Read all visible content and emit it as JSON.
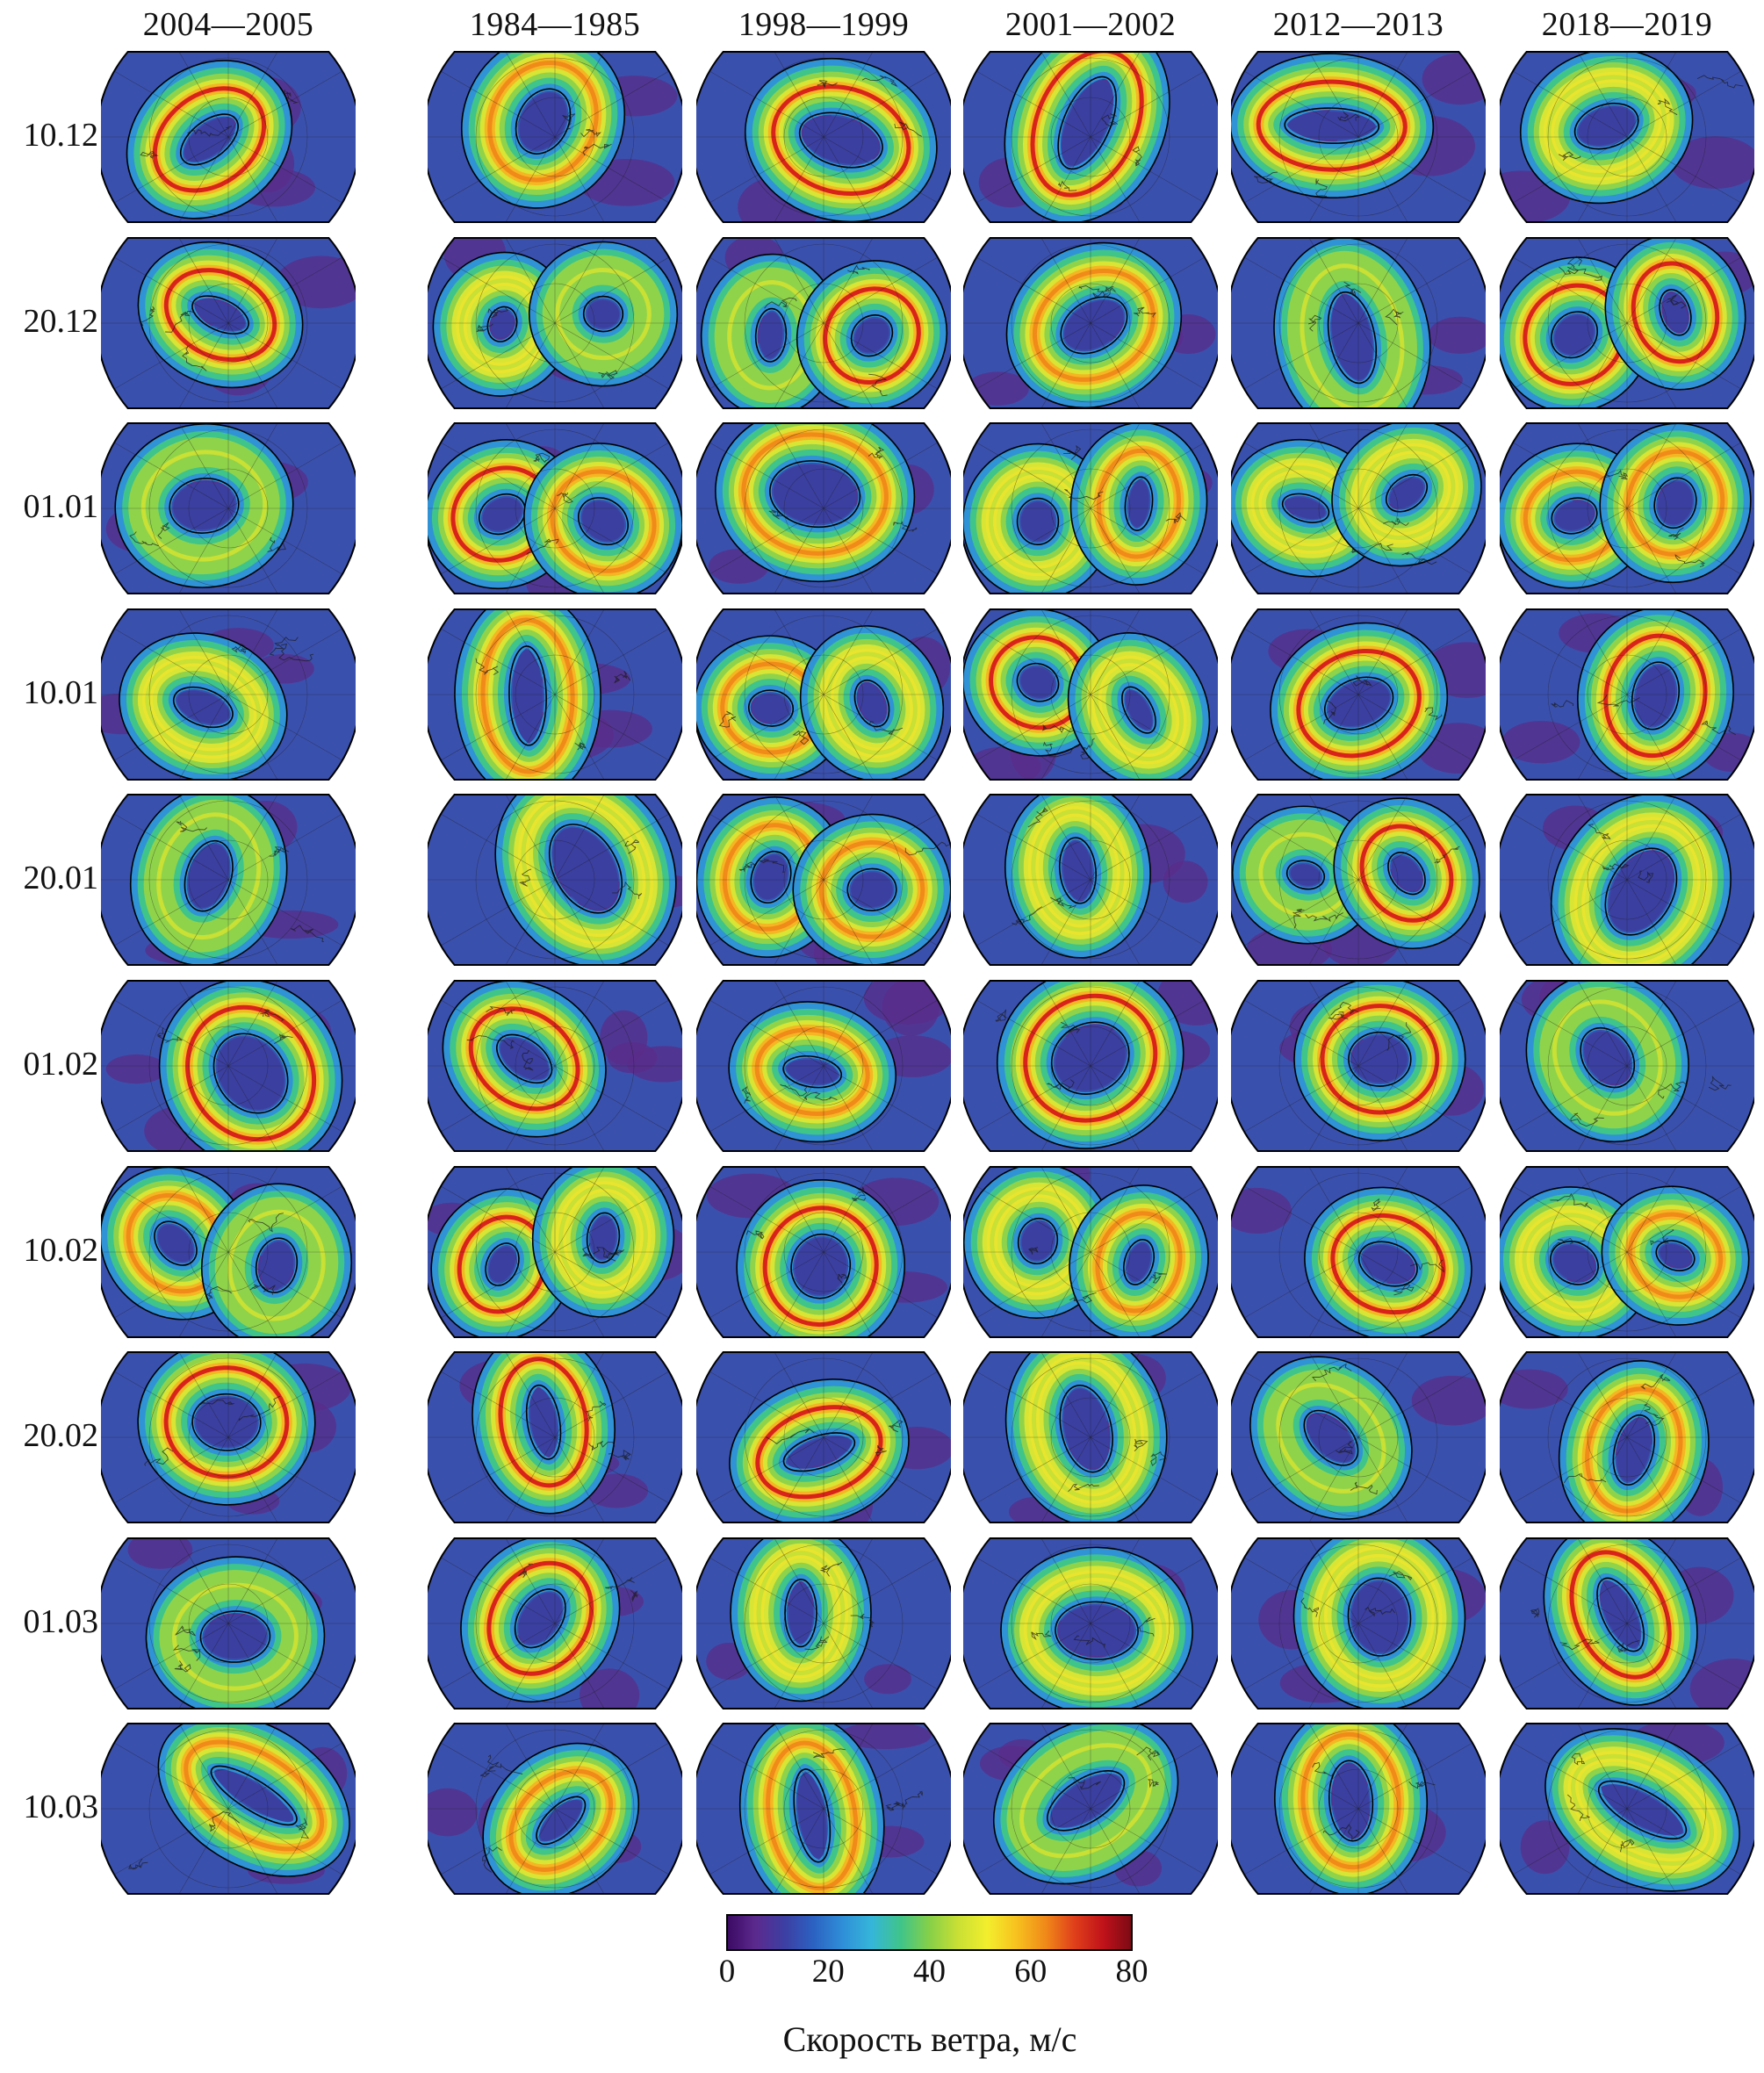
{
  "figure": {
    "column_headers": [
      "2004—2005",
      "1984—1985",
      "1998—1999",
      "2001—2002",
      "2012—2013",
      "2018—2019"
    ],
    "row_labels": [
      "10.12",
      "20.12",
      "01.01",
      "10.01",
      "20.01",
      "01.02",
      "10.02",
      "20.02",
      "01.03",
      "10.03"
    ],
    "panel_content": "stereographic polar map of wind speed with black coastline and contour lines",
    "colorbar": {
      "ticks": [
        "0",
        "20",
        "40",
        "60",
        "80"
      ],
      "label": "Скорость ветра, м/с",
      "colormap": [
        "#3b0a63",
        "#5b2a8e",
        "#3c3fa3",
        "#2b62c2",
        "#2f8fd8",
        "#35b6d9",
        "#3fc48a",
        "#86d048",
        "#c9e034",
        "#f3ee2d",
        "#f7c21f",
        "#f08a19",
        "#e0401a",
        "#c0121a",
        "#7a0a14"
      ]
    }
  }
}
